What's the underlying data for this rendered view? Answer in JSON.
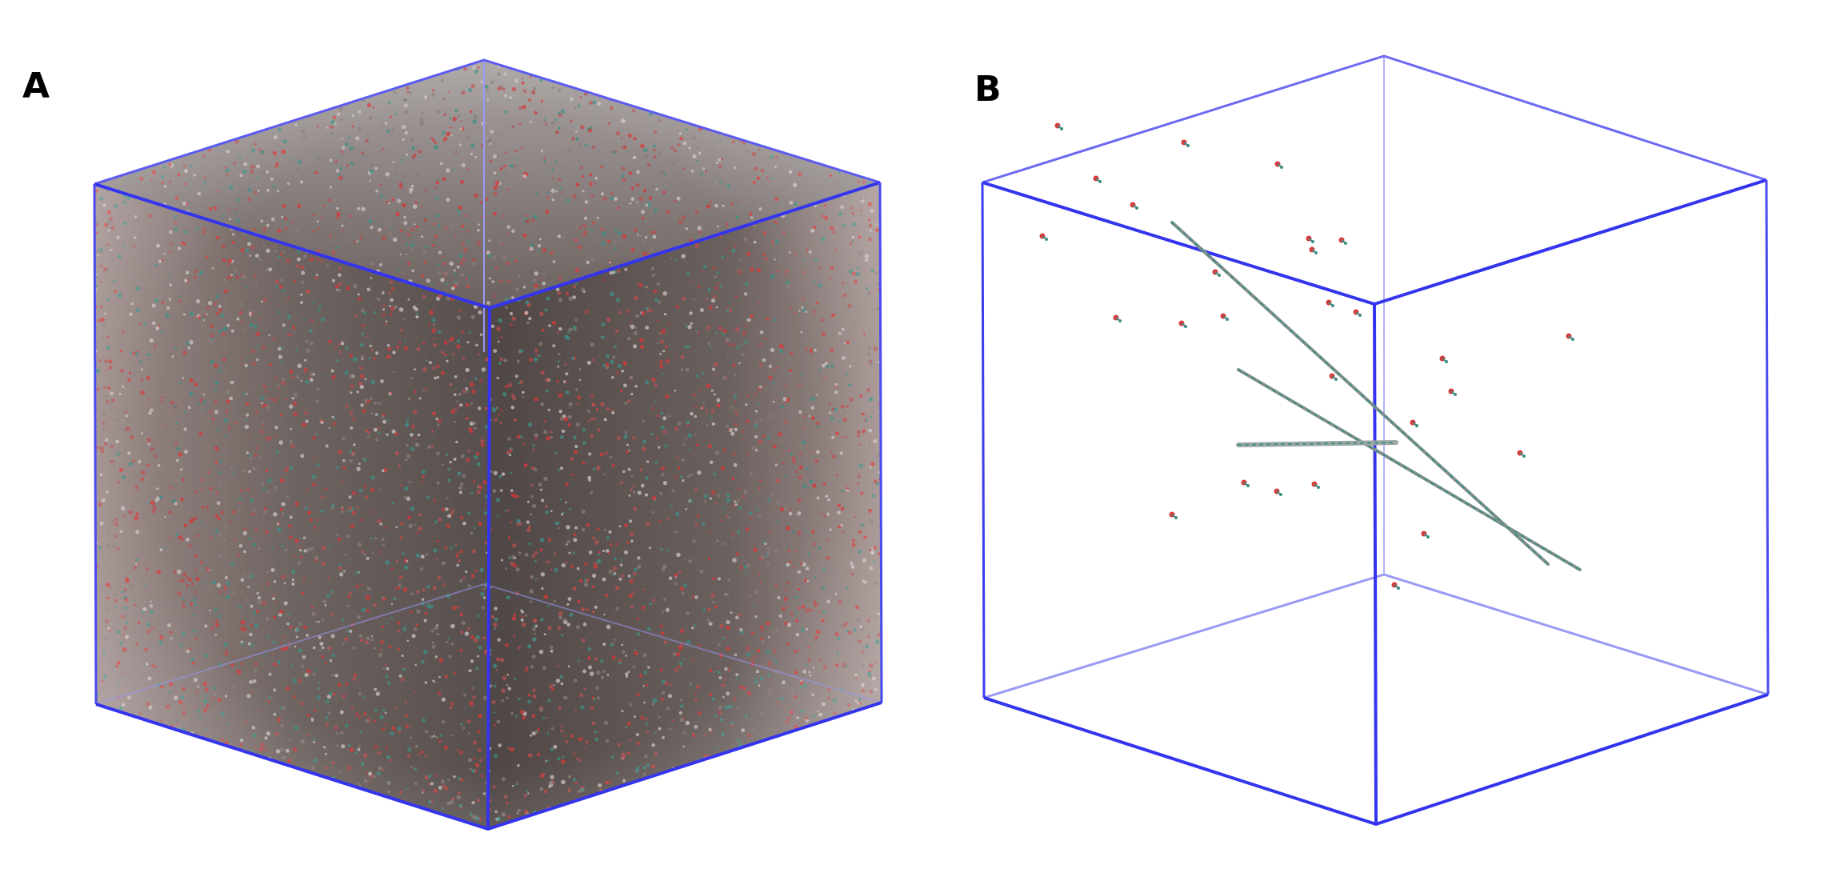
{
  "panels": [
    {
      "id": "A",
      "label": "A",
      "kind": "dense-solvent-box"
    },
    {
      "id": "B",
      "label": "B",
      "kind": "sparse-molecules-box"
    }
  ],
  "colors": {
    "box_edge": "#3b3bf0",
    "box_edge_light": "#9a9af6",
    "oxygen": "#d63a3a",
    "carbon": "#3f8f86",
    "hydrogen": "#e8e8e8",
    "chain": "#7d8f8b",
    "background": "#ffffff"
  }
}
